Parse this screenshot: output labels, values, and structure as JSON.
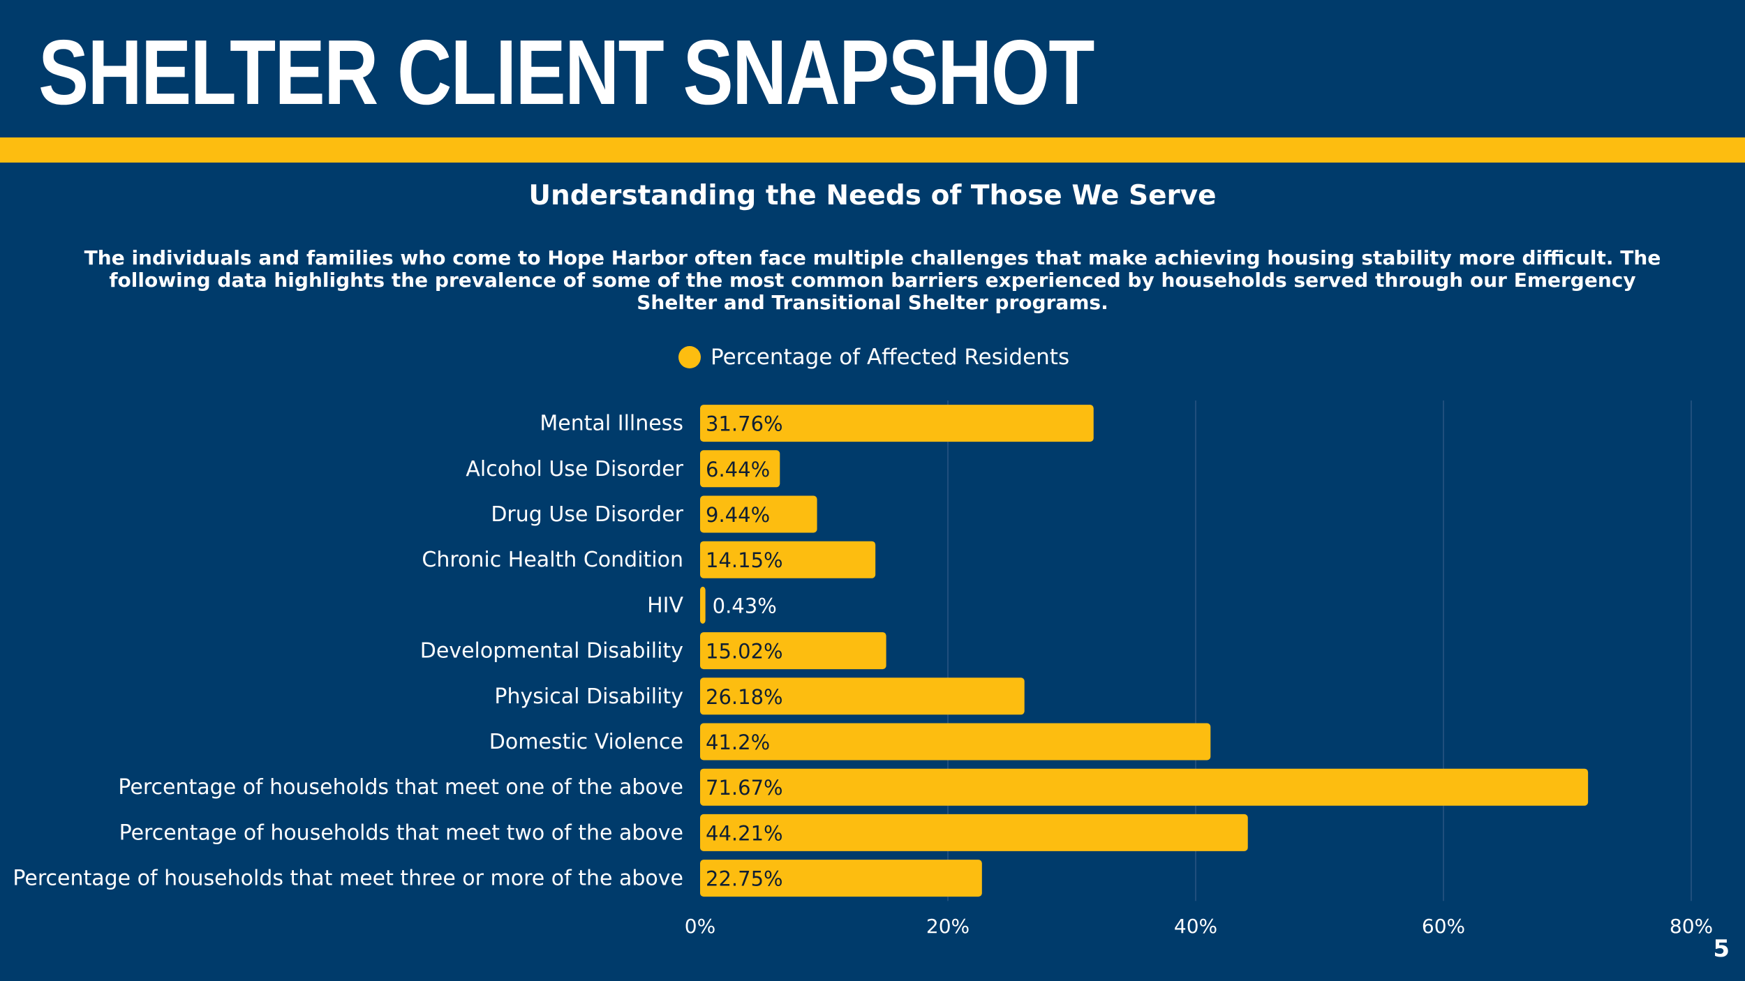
{
  "header": {
    "title": "SHELTER CLIENT SNAPSHOT",
    "subtitle": "Understanding the Needs of Those We Serve",
    "description": "The individuals and families who come to Hope Harbor often face multiple challenges that make achieving housing stability more difficult. The following data highlights the prevalence of some of the most common barriers experienced by households served through our Emergency Shelter and Transitional Shelter programs."
  },
  "page_number": "5",
  "colors": {
    "background": "#003b6b",
    "accent": "#fdbd10",
    "text": "#ffffff",
    "bar_label": "#0f1f33",
    "gridline": "#2b5683"
  },
  "chart_data": {
    "type": "bar",
    "orientation": "horizontal",
    "categories": [
      "Mental Illness",
      "Alcohol Use Disorder",
      "Drug Use Disorder",
      "Chronic Health Condition",
      "HIV",
      "Developmental Disability",
      "Physical Disability",
      "Domestic Violence",
      "Percentage of households that meet one of the above",
      "Percentage of households that meet two of the above",
      "Percentage of households that meet three or more of the above"
    ],
    "series": [
      {
        "name": "Percentage of Affected Residents",
        "values": [
          31.76,
          6.44,
          9.44,
          14.15,
          0.43,
          15.02,
          26.18,
          41.2,
          71.67,
          44.21,
          22.75
        ],
        "labels": [
          "31.76%",
          "6.44%",
          "9.44%",
          "14.15%",
          "0.43%",
          "15.02%",
          "26.18%",
          "41.2%",
          "71.67%",
          "44.21%",
          "22.75%"
        ],
        "color": "#fdbd10"
      }
    ],
    "xlim": [
      0,
      80
    ],
    "xticks": [
      0,
      20,
      40,
      60,
      80
    ],
    "xtick_labels": [
      "0%",
      "20%",
      "40%",
      "60%",
      "80%"
    ],
    "grid": true,
    "legend_position": "top-center"
  }
}
